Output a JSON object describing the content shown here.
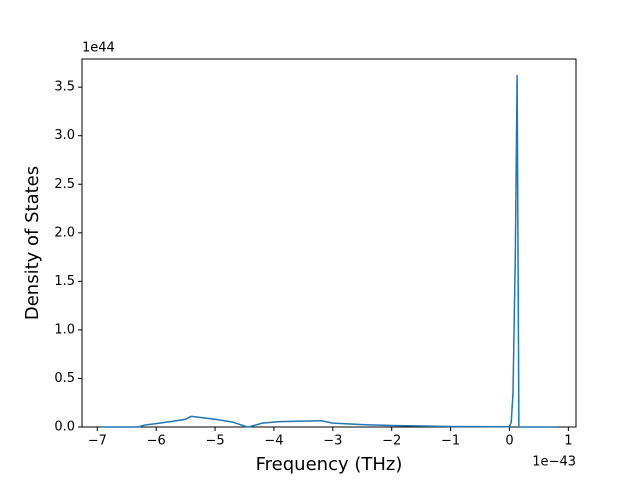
{
  "chart_data": {
    "type": "line",
    "x_label": "Frequency (THz)",
    "y_label": "Density of States",
    "x_offset_label": "1e−43",
    "y_offset_label": "1e44",
    "color": "#1f77b4",
    "x": [
      -6.95,
      -6.3,
      -6.2,
      -6.0,
      -5.7,
      -5.5,
      -5.4,
      -5.0,
      -4.7,
      -4.6,
      -4.45,
      -4.4,
      -4.2,
      -3.9,
      -3.2,
      -3.0,
      -2.5,
      -2.0,
      -1.0,
      0.0,
      0.03,
      0.06,
      0.1,
      0.13,
      0.16,
      0.8
    ],
    "values": [
      0,
      0,
      0.02,
      0.035,
      0.06,
      0.08,
      0.11,
      0.08,
      0.05,
      0.03,
      0,
      0.005,
      0.04,
      0.055,
      0.065,
      0.04,
      0.025,
      0.015,
      0.005,
      0.002,
      0.05,
      0.35,
      1.8,
      3.62,
      0,
      0
    ],
    "xlim": [
      -7.26,
      1.13
    ],
    "ylim": [
      0,
      3.79
    ],
    "xticks": [
      {
        "value": -7,
        "label": "−7"
      },
      {
        "value": -6,
        "label": "−6"
      },
      {
        "value": -5,
        "label": "−5"
      },
      {
        "value": -4,
        "label": "−4"
      },
      {
        "value": -3,
        "label": "−3"
      },
      {
        "value": -2,
        "label": "−2"
      },
      {
        "value": -1,
        "label": "−1"
      },
      0,
      1
    ],
    "yticks": [
      {
        "value": 0,
        "label": "0.0"
      },
      {
        "value": 0.5,
        "label": "0.5"
      },
      {
        "value": 1,
        "label": "1.0"
      },
      {
        "value": 1.5,
        "label": "1.5"
      },
      {
        "value": 2,
        "label": "2.0"
      },
      {
        "value": 2.5,
        "label": "2.5"
      },
      {
        "value": 3,
        "label": "3.0"
      },
      {
        "value": 3.5,
        "label": "3.5"
      }
    ]
  }
}
